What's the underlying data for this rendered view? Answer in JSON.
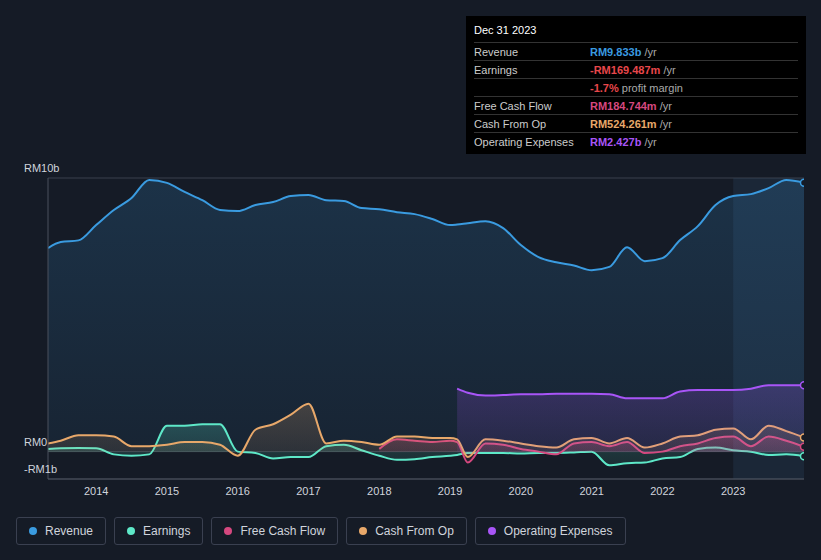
{
  "chart_data": {
    "type": "area",
    "x": [
      2013.32,
      2013.5,
      2013.75,
      2014.0,
      2014.25,
      2014.5,
      2014.75,
      2015.0,
      2015.25,
      2015.5,
      2015.75,
      2016.0,
      2016.25,
      2016.5,
      2016.75,
      2017.0,
      2017.25,
      2017.5,
      2017.75,
      2018.0,
      2018.25,
      2018.5,
      2018.75,
      2019.0,
      2019.1,
      2019.25,
      2019.5,
      2019.75,
      2020.0,
      2020.25,
      2020.5,
      2020.75,
      2021.0,
      2021.25,
      2021.5,
      2021.75,
      2022.0,
      2022.25,
      2022.5,
      2022.75,
      2023.0,
      2023.25,
      2023.5,
      2023.75,
      2024.0
    ],
    "series": [
      {
        "name": "Revenue",
        "color": "#3a9be0",
        "values": [
          7.44,
          7.66,
          7.72,
          8.28,
          8.83,
          9.27,
          9.93,
          9.82,
          9.49,
          9.19,
          8.83,
          8.79,
          9.01,
          9.12,
          9.34,
          9.38,
          9.19,
          9.16,
          8.9,
          8.86,
          8.75,
          8.68,
          8.5,
          8.28,
          8.3,
          8.35,
          8.42,
          8.17,
          7.55,
          7.11,
          6.92,
          6.8,
          6.63,
          6.75,
          7.47,
          6.96,
          7.07,
          7.73,
          8.24,
          9.01,
          9.34,
          9.41,
          9.63,
          9.93,
          9.83
        ]
      },
      {
        "name": "Earnings",
        "color": "#5ee8c8",
        "values": [
          0.1,
          0.12,
          0.13,
          0.12,
          -0.1,
          -0.15,
          -0.1,
          0.95,
          0.95,
          1.0,
          1.0,
          0.0,
          -0.05,
          -0.25,
          -0.2,
          -0.2,
          0.2,
          0.25,
          0.05,
          -0.15,
          -0.3,
          -0.28,
          -0.2,
          -0.15,
          -0.12,
          -0.05,
          -0.05,
          -0.05,
          -0.07,
          -0.05,
          -0.05,
          -0.03,
          0.0,
          -0.5,
          -0.42,
          -0.4,
          -0.25,
          -0.2,
          0.1,
          0.15,
          0.05,
          0.0,
          -0.12,
          -0.1,
          -0.17
        ]
      },
      {
        "name": "Free Cash Flow",
        "color": "#d5487f",
        "values": [
          null,
          null,
          null,
          null,
          null,
          null,
          null,
          null,
          null,
          null,
          null,
          null,
          null,
          null,
          null,
          null,
          null,
          null,
          null,
          0.1,
          0.45,
          0.4,
          0.35,
          0.4,
          0.35,
          -0.4,
          0.3,
          0.25,
          0.1,
          0.0,
          -0.1,
          0.3,
          0.35,
          0.2,
          0.35,
          -0.05,
          0.0,
          0.2,
          0.3,
          0.5,
          0.55,
          0.2,
          0.55,
          0.4,
          0.18
        ]
      },
      {
        "name": "Cash From Op",
        "color": "#e8a86a",
        "values": [
          0.3,
          0.4,
          0.6,
          0.6,
          0.55,
          0.2,
          0.2,
          0.25,
          0.35,
          0.35,
          0.25,
          -0.15,
          0.8,
          1.0,
          1.35,
          1.75,
          0.3,
          0.4,
          0.35,
          0.25,
          0.55,
          0.55,
          0.5,
          0.5,
          0.45,
          -0.2,
          0.45,
          0.4,
          0.3,
          0.2,
          0.15,
          0.45,
          0.5,
          0.3,
          0.5,
          0.15,
          0.3,
          0.55,
          0.6,
          0.8,
          0.85,
          0.45,
          0.95,
          0.75,
          0.52
        ]
      },
      {
        "name": "Operating Expenses",
        "color": "#a855f7",
        "values": [
          null,
          null,
          null,
          null,
          null,
          null,
          null,
          null,
          null,
          null,
          null,
          null,
          null,
          null,
          null,
          null,
          null,
          null,
          null,
          null,
          null,
          null,
          null,
          null,
          2.3,
          2.15,
          2.05,
          2.07,
          2.1,
          2.1,
          2.12,
          2.12,
          2.12,
          2.1,
          1.95,
          1.95,
          1.95,
          2.2,
          2.25,
          2.25,
          2.25,
          2.3,
          2.43,
          2.43,
          2.43
        ]
      }
    ],
    "xlim": [
      2013.32,
      2024.0
    ],
    "xticks": [
      2014,
      2015,
      2016,
      2017,
      2018,
      2019,
      2020,
      2021,
      2022,
      2023
    ],
    "ylim": [
      -1,
      10
    ],
    "yticks": [
      {
        "value": -1,
        "label": "-RM1b"
      },
      {
        "value": 0,
        "label": "RM0"
      },
      {
        "value": 10,
        "label": "RM10b"
      }
    ],
    "grid": true,
    "legend": "bottom",
    "info_box": {
      "title": "Dec 31 2023",
      "rows": [
        {
          "label": "Revenue",
          "value": "RM9.833b",
          "unit": "/yr",
          "color": "#3a9be0"
        },
        {
          "label": "Earnings",
          "value": "-RM169.487m",
          "unit": "/yr",
          "color": "#e8474b"
        },
        {
          "value": "-1.7%",
          "unit": "profit margin",
          "color": "#e8474b"
        },
        {
          "label": "Free Cash Flow",
          "value": "RM184.744m",
          "unit": "/yr",
          "color": "#d5487f"
        },
        {
          "label": "Cash From Op",
          "value": "RM524.261m",
          "unit": "/yr",
          "color": "#e8a86a"
        },
        {
          "label": "Operating Expenses",
          "value": "RM2.427b",
          "unit": "/yr",
          "color": "#a855f7"
        }
      ]
    }
  }
}
